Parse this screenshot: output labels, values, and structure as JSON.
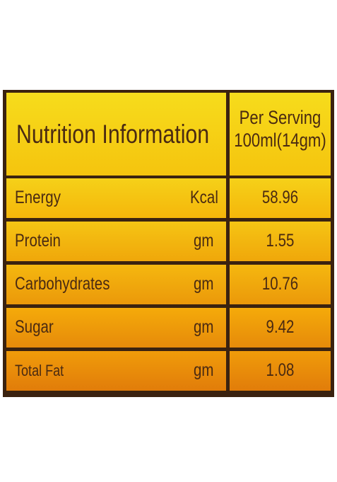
{
  "table": {
    "title": "Nutrition Information",
    "serving_header": [
      "Per Serving",
      "100ml(14gm)"
    ],
    "rows": [
      [
        "Energy",
        "Kcal",
        58.96
      ],
      [
        "Protein",
        "gm",
        1.55
      ],
      [
        "Carbohydrates",
        "gm",
        10.76
      ],
      [
        "Sugar",
        "gm",
        9.42
      ],
      [
        "Total Fat",
        "gm",
        1.08
      ]
    ]
  }
}
